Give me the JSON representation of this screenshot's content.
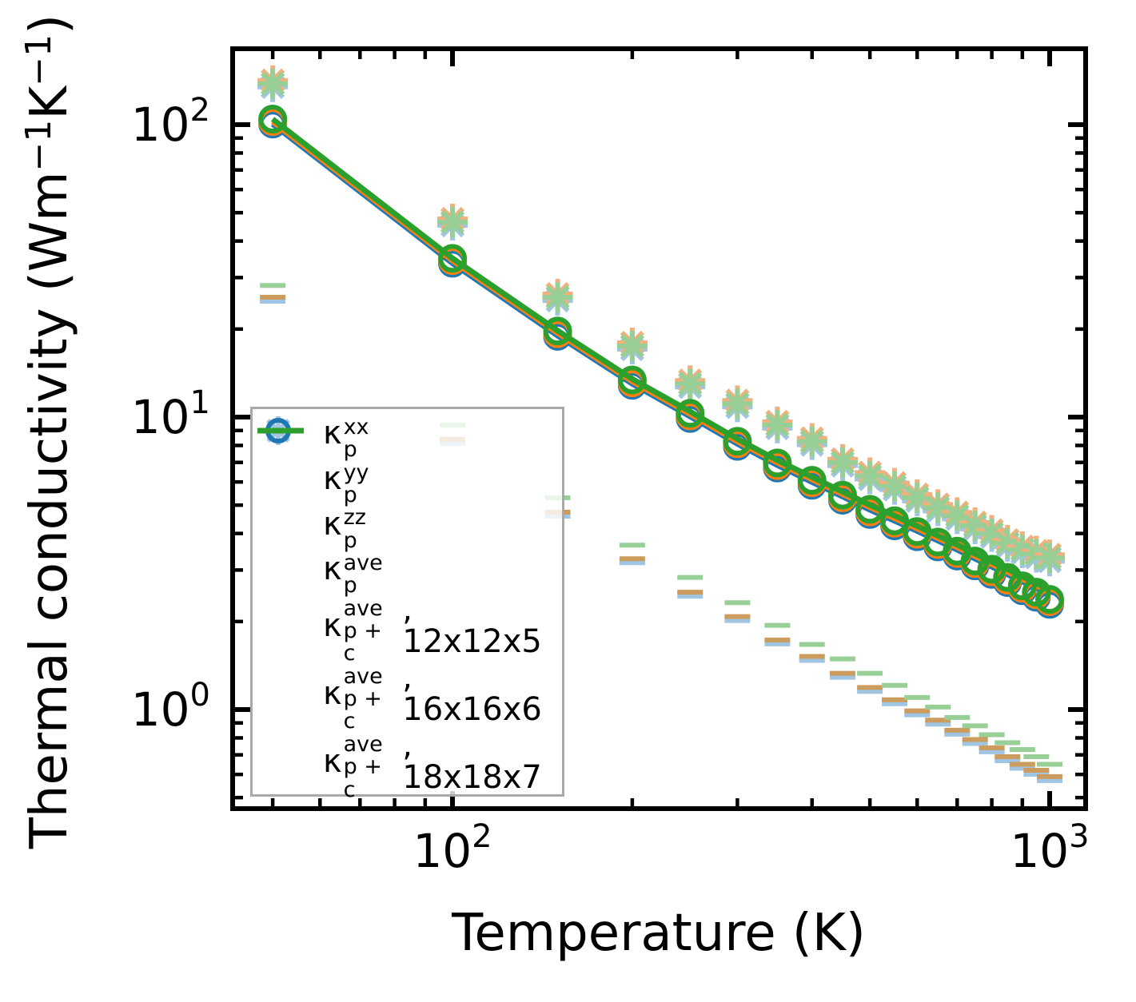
{
  "figure": {
    "xlabel": "Temperature (K)",
    "ylabel_segments": [
      {
        "t": "Thermal conductivity (Wm"
      },
      {
        "sup": "−1"
      },
      {
        "t": "K"
      },
      {
        "sup": "−1"
      },
      {
        "t": ")"
      }
    ],
    "x_tick_labels": [
      {
        "base": "10",
        "exp": "2",
        "value": 100
      },
      {
        "base": "10",
        "exp": "3",
        "value": 1000
      }
    ],
    "y_tick_labels": [
      {
        "base": "10",
        "exp": "2",
        "value": 100
      },
      {
        "base": "10",
        "exp": "1",
        "value": 10
      },
      {
        "base": "10",
        "exp": "0",
        "value": 1
      }
    ]
  },
  "colors": {
    "blue": "#1f77b4",
    "orange": "#ff7f0e",
    "green": "#2ca02c",
    "pale_blue": "#9fc5e3",
    "pale_orange": "#f1b17c",
    "zz_orange": "#cc9b5e",
    "pale_green": "#97cf97",
    "legend_border": "#a9a9a9"
  },
  "legend": {
    "entries": [
      {
        "marker": "plus",
        "color_key": "pale_blue",
        "kappa": "κ",
        "sup": "xx",
        "sub": "p",
        "rest": ""
      },
      {
        "marker": "cross",
        "color_key": "pale_blue",
        "kappa": "κ",
        "sup": "yy",
        "sub": "p",
        "rest": ""
      },
      {
        "marker": "dash",
        "color_key": "pale_blue",
        "kappa": "κ",
        "sup": "zz",
        "sub": "p",
        "rest": ""
      },
      {
        "marker": "circle",
        "color_key": "blue",
        "kappa": "κ",
        "sup": "ave",
        "sub": "p",
        "rest": ""
      },
      {
        "marker": "line",
        "color_key": "blue",
        "kappa": "κ",
        "sup": "ave",
        "sub": "p + c",
        "rest": ", 12x12x5"
      },
      {
        "marker": "line",
        "color_key": "orange",
        "kappa": "κ",
        "sup": "ave",
        "sub": "p + c",
        "rest": ", 16x16x6"
      },
      {
        "marker": "line",
        "color_key": "green",
        "kappa": "κ",
        "sup": "ave",
        "sub": "p + c",
        "rest": ", 18x18x7"
      }
    ]
  },
  "chart_data": {
    "type": "scatter+line",
    "title": "",
    "xlabel": "Temperature (K)",
    "ylabel": "Thermal conductivity (Wm^-1 K^-1)",
    "x_scale": "log",
    "y_scale": "log",
    "x_range": [
      42.7,
      1156
    ],
    "y_range": [
      0.46,
      185
    ],
    "x_major_ticks": [
      100,
      1000
    ],
    "x_minor_ticks": [
      50,
      60,
      70,
      80,
      90,
      200,
      300,
      400,
      500,
      600,
      700,
      800,
      900
    ],
    "y_major_ticks": [
      100,
      10,
      1
    ],
    "y_minor_ticks": [
      90,
      80,
      70,
      60,
      50,
      40,
      30,
      20,
      9,
      8,
      7,
      6,
      5,
      4,
      3,
      2,
      0.9,
      0.8,
      0.7,
      0.6,
      0.5
    ],
    "grid": false,
    "legend_position": "lower left",
    "temperatures": [
      50,
      100,
      150,
      200,
      250,
      300,
      350,
      400,
      450,
      500,
      550,
      600,
      650,
      700,
      750,
      800,
      850,
      900,
      950,
      1000
    ],
    "series": [
      {
        "name": "kappa_p_xx_yy",
        "marker": "plus+cross",
        "meshes": [
          "12x12x5",
          "16x16x6",
          "18x18x7"
        ],
        "values": [
          138,
          46.4,
          25.7,
          17.5,
          13.0,
          11.1,
          9.4,
          8.25,
          7.0,
          6.3,
          5.8,
          5.3,
          4.9,
          4.6,
          4.25,
          4.0,
          3.7,
          3.52,
          3.4,
          3.3
        ]
      },
      {
        "name": "kappa_p_zz_18x18x7",
        "marker": "hline",
        "values": [
          28.2,
          9.4,
          5.3,
          3.65,
          2.83,
          2.32,
          1.94,
          1.67,
          1.49,
          1.33,
          1.21,
          1.1,
          1.02,
          0.94,
          0.88,
          0.82,
          0.77,
          0.73,
          0.69,
          0.65
        ]
      },
      {
        "name": "kappa_p_zz_12x12x5_16x16x6",
        "marker": "hline",
        "values": [
          25.7,
          8.4,
          4.73,
          3.28,
          2.52,
          2.08,
          1.73,
          1.52,
          1.33,
          1.19,
          1.08,
          0.99,
          0.92,
          0.85,
          0.79,
          0.74,
          0.69,
          0.65,
          0.62,
          0.59
        ]
      },
      {
        "name": "kappa_p_ave_12x12x5",
        "marker": "circle",
        "color": "blue",
        "values": [
          100.5,
          33.6,
          18.9,
          12.85,
          9.9,
          7.95,
          6.7,
          5.85,
          5.2,
          4.65,
          4.25,
          3.9,
          3.6,
          3.35,
          3.1,
          2.9,
          2.72,
          2.55,
          2.42,
          2.29
        ]
      },
      {
        "name": "kappa_p_ave_16x16x6",
        "marker": "circle",
        "color": "orange",
        "values": [
          102.5,
          34.3,
          19.3,
          13.1,
          10.1,
          8.11,
          6.83,
          5.97,
          5.3,
          4.74,
          4.34,
          3.98,
          3.67,
          3.42,
          3.16,
          2.96,
          2.77,
          2.6,
          2.47,
          2.34
        ]
      },
      {
        "name": "kappa_p_ave_18x18x7",
        "marker": "circle",
        "color": "green",
        "values": [
          104.5,
          34.9,
          19.7,
          13.4,
          10.3,
          8.27,
          6.97,
          6.08,
          5.41,
          4.84,
          4.42,
          4.06,
          3.74,
          3.48,
          3.22,
          3.02,
          2.83,
          2.65,
          2.52,
          2.38
        ]
      },
      {
        "name": "kappa_p+c_ave_12x12x5",
        "type": "line",
        "color": "blue",
        "values": [
          100.5,
          33.6,
          19.0,
          13.0,
          10.05,
          8.1,
          6.85,
          6.0,
          5.35,
          4.82,
          4.42,
          4.08,
          3.78,
          3.52,
          3.28,
          3.08,
          2.9,
          2.74,
          2.6,
          2.48
        ]
      },
      {
        "name": "kappa_p+c_ave_16x16x6",
        "type": "line",
        "color": "orange",
        "values": [
          102.5,
          34.3,
          19.4,
          13.25,
          10.25,
          8.26,
          6.99,
          6.12,
          5.46,
          4.92,
          4.51,
          4.16,
          3.86,
          3.59,
          3.35,
          3.14,
          2.96,
          2.79,
          2.65,
          2.53
        ]
      },
      {
        "name": "kappa_p+c_ave_18x18x7",
        "type": "line",
        "color": "green",
        "values": [
          104.5,
          34.9,
          19.75,
          13.5,
          10.45,
          8.42,
          7.12,
          6.24,
          5.56,
          5.01,
          4.6,
          4.24,
          3.93,
          3.66,
          3.41,
          3.2,
          3.02,
          2.85,
          2.7,
          2.58
        ]
      }
    ]
  }
}
